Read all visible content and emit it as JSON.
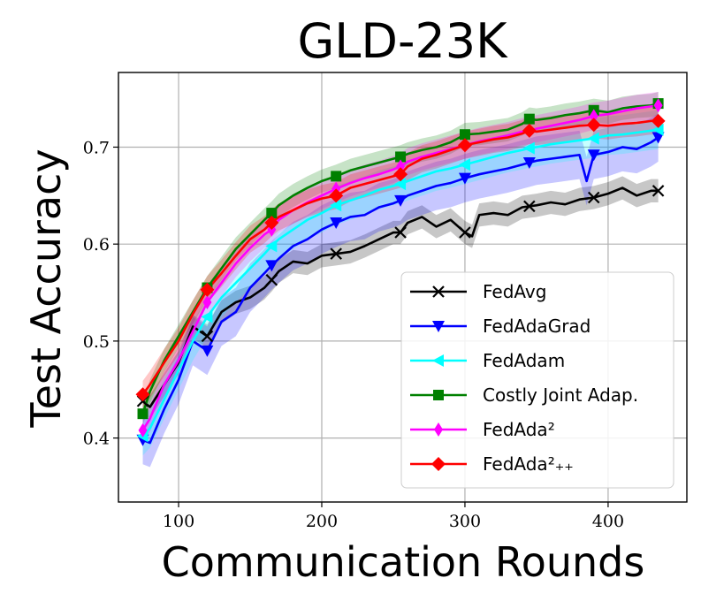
{
  "chart_data": {
    "type": "line",
    "title": "GLD-23K",
    "xlabel": "Communication Rounds",
    "ylabel": "Test Accuracy",
    "xlim": [
      58,
      455
    ],
    "ylim": [
      0.334,
      0.777
    ],
    "x_ticks": [
      100,
      200,
      300,
      400
    ],
    "y_ticks": [
      0.4,
      0.5,
      0.6,
      0.7
    ],
    "x_tick_labels": [
      "100",
      "200",
      "300",
      "400"
    ],
    "y_tick_labels": [
      "0.4",
      "0.5",
      "0.6",
      "0.7"
    ],
    "grid": true,
    "legend_position": "lower-right",
    "series": [
      {
        "name": "FedAvg",
        "color": "#000000",
        "marker": "x",
        "band_width": 0.012,
        "x": [
          75,
          80,
          90,
          100,
          110,
          120,
          130,
          140,
          150,
          160,
          165,
          170,
          180,
          190,
          200,
          210,
          220,
          230,
          240,
          250,
          255,
          260,
          270,
          280,
          290,
          300,
          305,
          310,
          320,
          330,
          340,
          345,
          350,
          360,
          370,
          380,
          390,
          400,
          410,
          420,
          430,
          435
        ],
        "y": [
          0.438,
          0.432,
          0.455,
          0.478,
          0.515,
          0.505,
          0.53,
          0.54,
          0.545,
          0.555,
          0.563,
          0.572,
          0.582,
          0.58,
          0.588,
          0.59,
          0.592,
          0.598,
          0.605,
          0.612,
          0.612,
          0.622,
          0.628,
          0.618,
          0.625,
          0.612,
          0.608,
          0.63,
          0.632,
          0.63,
          0.638,
          0.639,
          0.64,
          0.643,
          0.641,
          0.646,
          0.648,
          0.652,
          0.658,
          0.65,
          0.655,
          0.655
        ],
        "marker_x": [
          75,
          120,
          165,
          210,
          255,
          300,
          345,
          390,
          435
        ]
      },
      {
        "name": "FedAdaGrad",
        "color": "#0000ff",
        "marker": "triangle-down",
        "band_width": 0.025,
        "x": [
          75,
          80,
          90,
          100,
          110,
          120,
          130,
          140,
          150,
          160,
          165,
          170,
          180,
          190,
          200,
          210,
          220,
          230,
          240,
          250,
          255,
          260,
          270,
          280,
          290,
          300,
          310,
          320,
          330,
          340,
          345,
          350,
          360,
          370,
          380,
          385,
          390,
          400,
          410,
          420,
          430,
          435
        ],
        "y": [
          0.398,
          0.395,
          0.43,
          0.46,
          0.5,
          0.49,
          0.52,
          0.53,
          0.555,
          0.57,
          0.578,
          0.585,
          0.598,
          0.605,
          0.615,
          0.622,
          0.628,
          0.63,
          0.638,
          0.642,
          0.645,
          0.65,
          0.655,
          0.66,
          0.663,
          0.668,
          0.672,
          0.675,
          0.678,
          0.682,
          0.684,
          0.686,
          0.688,
          0.69,
          0.692,
          0.665,
          0.692,
          0.695,
          0.7,
          0.698,
          0.705,
          0.71
        ],
        "marker_x": [
          75,
          120,
          165,
          210,
          255,
          300,
          345,
          390,
          435
        ]
      },
      {
        "name": "FedAdam",
        "color": "#00ffff",
        "marker": "triangle-left",
        "band_width": 0.02,
        "x": [
          75,
          80,
          90,
          100,
          110,
          120,
          130,
          140,
          150,
          160,
          165,
          170,
          180,
          190,
          200,
          210,
          220,
          230,
          240,
          250,
          255,
          260,
          270,
          280,
          290,
          300,
          310,
          320,
          330,
          340,
          345,
          350,
          360,
          370,
          380,
          390,
          400,
          410,
          420,
          430,
          435
        ],
        "y": [
          0.402,
          0.41,
          0.44,
          0.47,
          0.5,
          0.525,
          0.545,
          0.56,
          0.575,
          0.59,
          0.598,
          0.605,
          0.615,
          0.625,
          0.632,
          0.64,
          0.645,
          0.65,
          0.656,
          0.66,
          0.662,
          0.665,
          0.67,
          0.675,
          0.678,
          0.682,
          0.686,
          0.69,
          0.694,
          0.697,
          0.699,
          0.7,
          0.703,
          0.705,
          0.707,
          0.709,
          0.712,
          0.713,
          0.715,
          0.717,
          0.718
        ],
        "marker_x": [
          75,
          120,
          165,
          210,
          255,
          300,
          345,
          390,
          435
        ]
      },
      {
        "name": "Costly Joint Adap.",
        "color": "#008000",
        "marker": "square",
        "band_width": 0.012,
        "x": [
          75,
          80,
          90,
          100,
          110,
          120,
          130,
          140,
          150,
          160,
          165,
          170,
          180,
          190,
          200,
          210,
          220,
          230,
          240,
          250,
          255,
          260,
          270,
          280,
          290,
          300,
          310,
          320,
          330,
          340,
          345,
          350,
          360,
          370,
          380,
          390,
          400,
          410,
          420,
          430,
          435
        ],
        "y": [
          0.425,
          0.448,
          0.48,
          0.505,
          0.53,
          0.555,
          0.575,
          0.595,
          0.61,
          0.625,
          0.632,
          0.64,
          0.65,
          0.658,
          0.665,
          0.67,
          0.676,
          0.68,
          0.684,
          0.688,
          0.69,
          0.693,
          0.697,
          0.7,
          0.705,
          0.713,
          0.714,
          0.716,
          0.718,
          0.724,
          0.729,
          0.728,
          0.73,
          0.733,
          0.735,
          0.738,
          0.736,
          0.74,
          0.742,
          0.743,
          0.745
        ],
        "marker_x": [
          75,
          120,
          165,
          210,
          255,
          300,
          345,
          390,
          435
        ]
      },
      {
        "name": "FedAda²",
        "color": "#ff00ff",
        "marker": "thin-diamond",
        "band_width": 0.014,
        "x": [
          75,
          80,
          90,
          100,
          110,
          120,
          130,
          140,
          150,
          160,
          165,
          170,
          180,
          190,
          200,
          210,
          220,
          230,
          240,
          250,
          255,
          260,
          270,
          280,
          290,
          300,
          310,
          320,
          330,
          340,
          345,
          350,
          360,
          370,
          380,
          390,
          400,
          410,
          420,
          430,
          435
        ],
        "y": [
          0.408,
          0.42,
          0.455,
          0.48,
          0.51,
          0.54,
          0.56,
          0.58,
          0.596,
          0.61,
          0.615,
          0.625,
          0.635,
          0.643,
          0.65,
          0.657,
          0.663,
          0.668,
          0.672,
          0.677,
          0.68,
          0.685,
          0.69,
          0.694,
          0.698,
          0.702,
          0.706,
          0.709,
          0.712,
          0.716,
          0.717,
          0.719,
          0.722,
          0.725,
          0.728,
          0.732,
          0.734,
          0.737,
          0.74,
          0.742,
          0.743
        ],
        "marker_x": [
          75,
          120,
          165,
          210,
          255,
          300,
          345,
          390,
          435
        ]
      },
      {
        "name": "FedAda²₊₊",
        "color": "#ff0000",
        "marker": "diamond",
        "band_width": 0.014,
        "x": [
          75,
          80,
          90,
          100,
          110,
          120,
          130,
          140,
          150,
          160,
          165,
          170,
          180,
          190,
          200,
          210,
          220,
          230,
          240,
          250,
          255,
          260,
          270,
          280,
          290,
          300,
          310,
          320,
          330,
          340,
          345,
          350,
          360,
          370,
          380,
          390,
          400,
          410,
          420,
          430,
          435
        ],
        "y": [
          0.445,
          0.455,
          0.478,
          0.5,
          0.528,
          0.553,
          0.57,
          0.588,
          0.605,
          0.615,
          0.622,
          0.628,
          0.635,
          0.642,
          0.647,
          0.65,
          0.658,
          0.662,
          0.666,
          0.67,
          0.672,
          0.68,
          0.688,
          0.692,
          0.697,
          0.702,
          0.705,
          0.708,
          0.71,
          0.714,
          0.717,
          0.716,
          0.718,
          0.72,
          0.722,
          0.723,
          0.722,
          0.724,
          0.725,
          0.727,
          0.727
        ],
        "marker_x": [
          75,
          120,
          165,
          210,
          255,
          300,
          345,
          390,
          435
        ]
      }
    ]
  }
}
